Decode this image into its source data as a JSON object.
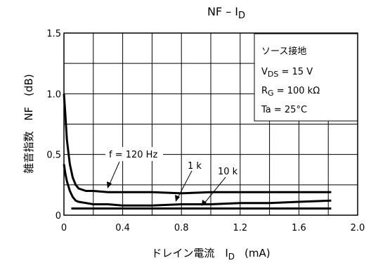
{
  "chart_data": {
    "type": "line",
    "title_main": "NF – I",
    "title_sub": "D",
    "xlabel_main": "ドレイン電流　I",
    "xlabel_sub": "D",
    "xlabel_unit": "(mA)",
    "ylabel": "雑音指数　NF　(dB)",
    "x_ticks": [
      "0",
      "0.4",
      "0.8",
      "1.2",
      "1.6",
      "2.0"
    ],
    "y_ticks": [
      "0",
      "0.5",
      "1.0",
      "1.5"
    ],
    "xlim": [
      0,
      2.0
    ],
    "ylim": [
      0,
      1.5
    ],
    "grid": true,
    "series": [
      {
        "name": "f = 120 Hz",
        "x": [
          0.0,
          0.01,
          0.02,
          0.04,
          0.06,
          0.08,
          0.1,
          0.15,
          0.2,
          0.3,
          0.4,
          0.6,
          0.8,
          1.0,
          1.2,
          1.4,
          1.6,
          1.82
        ],
        "y": [
          1.0,
          0.82,
          0.62,
          0.42,
          0.31,
          0.25,
          0.22,
          0.2,
          0.2,
          0.19,
          0.19,
          0.19,
          0.18,
          0.19,
          0.19,
          0.19,
          0.19,
          0.19
        ]
      },
      {
        "name": "1 k",
        "x": [
          0.0,
          0.01,
          0.02,
          0.04,
          0.06,
          0.08,
          0.1,
          0.15,
          0.2,
          0.3,
          0.4,
          0.6,
          0.8,
          1.0,
          1.2,
          1.4,
          1.6,
          1.82
        ],
        "y": [
          0.42,
          0.34,
          0.28,
          0.2,
          0.15,
          0.12,
          0.11,
          0.1,
          0.09,
          0.09,
          0.08,
          0.08,
          0.09,
          0.09,
          0.1,
          0.1,
          0.11,
          0.12
        ]
      },
      {
        "name": "10 k",
        "x": [
          0.05,
          0.2,
          0.4,
          0.8,
          1.2,
          1.6,
          1.82
        ],
        "y": [
          0.055,
          0.055,
          0.055,
          0.055,
          0.055,
          0.055,
          0.055
        ]
      }
    ],
    "annotations": [
      "f = 120 Hz",
      "1 k",
      "10 k"
    ],
    "conditions": [
      {
        "text": "ソース接地"
      },
      {
        "main": "V",
        "sub": "DS",
        "rest": " = 15 V"
      },
      {
        "main": "R",
        "sub": "G",
        "rest": " = 100 kΩ"
      },
      {
        "text": "Ta = 25°C"
      }
    ]
  }
}
